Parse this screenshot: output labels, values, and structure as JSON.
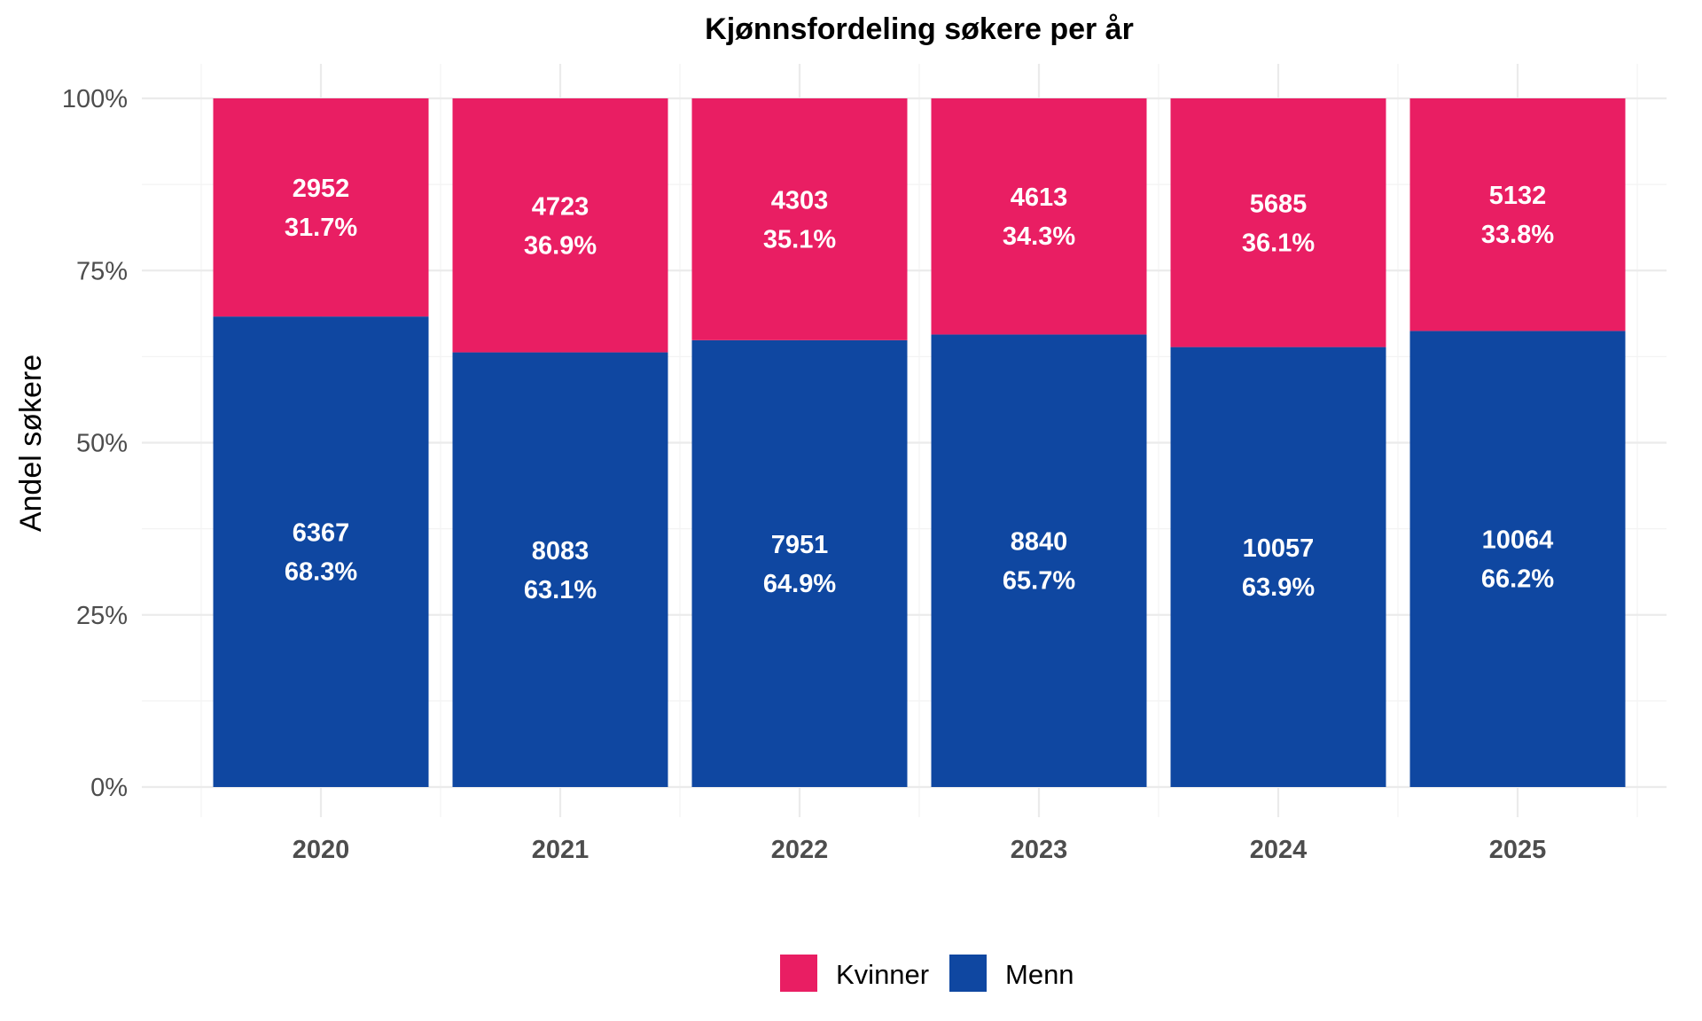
{
  "chart_data": {
    "type": "bar",
    "stacked": "percent",
    "title": "Kjønnsfordeling søkere per år",
    "xlabel": "",
    "ylabel": "Andel søkere",
    "ylim": [
      0,
      100
    ],
    "yticks": [
      "0%",
      "25%",
      "50%",
      "75%",
      "100%"
    ],
    "categories": [
      "2020",
      "2021",
      "2022",
      "2023",
      "2024",
      "2025"
    ],
    "series": [
      {
        "name": "Menn",
        "color": "#0f47a1",
        "counts": [
          6367,
          8083,
          7951,
          8840,
          10057,
          10064
        ],
        "percent_labels": [
          "68.3%",
          "63.1%",
          "64.9%",
          "65.7%",
          "63.9%",
          "66.2%"
        ]
      },
      {
        "name": "Kvinner",
        "color": "#e91e63",
        "counts": [
          2952,
          4723,
          4303,
          4613,
          5685,
          5132
        ],
        "percent_labels": [
          "31.7%",
          "36.9%",
          "35.1%",
          "34.3%",
          "36.1%",
          "33.8%"
        ]
      }
    ],
    "legend": {
      "position": "bottom",
      "entries": [
        "Kvinner",
        "Menn"
      ]
    },
    "grid": true
  }
}
